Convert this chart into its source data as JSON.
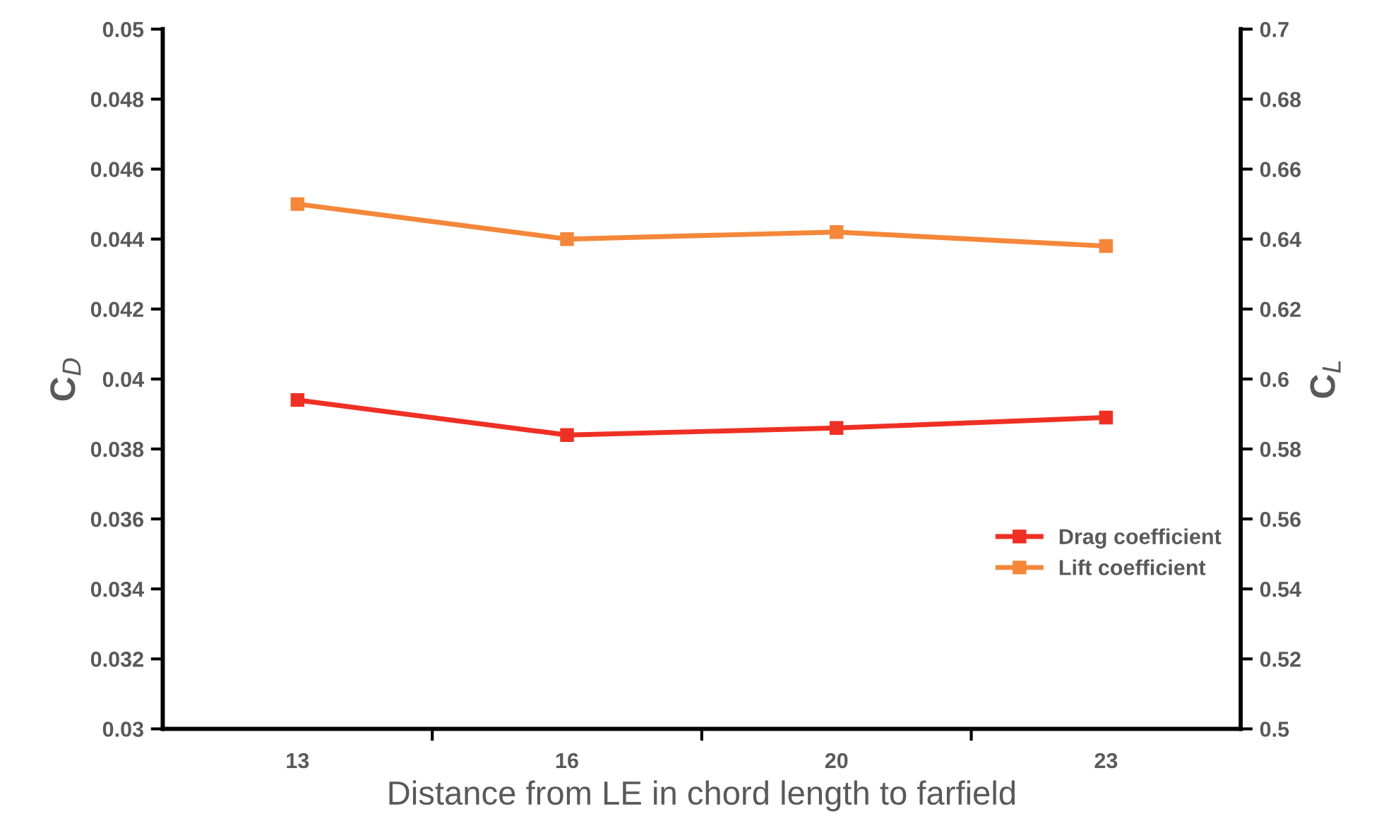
{
  "chart_data": {
    "type": "line",
    "xlabel": "Distance from LE in chord length to farfield",
    "ylabel": "C$_{D}$",
    "y2label": "C$_{L}$",
    "categories": [
      "13",
      "16",
      "20",
      "23"
    ],
    "series": [
      {
        "name": "Drag coefficient",
        "color": "#ee3024",
        "values": [
          0.0394,
          0.0384,
          0.0386,
          0.0389
        ]
      },
      {
        "name": "Lift coefficient",
        "color": "#f4873a",
        "axis": "y2",
        "values": [
          0.65,
          0.64,
          0.642,
          0.638
        ]
      }
    ],
    "ylim": [
      0.03,
      0.05
    ],
    "yticks": [
      0.03,
      0.032,
      0.034,
      0.036,
      0.038,
      0.04,
      0.042,
      0.044,
      0.046,
      0.048,
      0.05
    ],
    "y2lim": [
      0.5,
      0.7
    ],
    "y2ticks": [
      0.5,
      0.52,
      0.54,
      0.56,
      0.58,
      0.6,
      0.62,
      0.64,
      0.66,
      0.68,
      0.7
    ],
    "marker": "square",
    "line_style": "solid",
    "grid": false,
    "legend": "right"
  }
}
